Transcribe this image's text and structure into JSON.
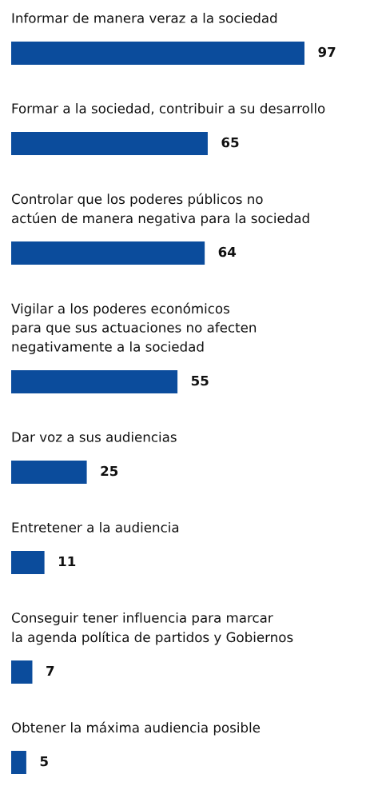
{
  "chart_data": {
    "type": "bar",
    "orientation": "horizontal",
    "categories": [
      "Informar de manera veraz a la sociedad",
      "Formar a la sociedad, contribuir a su desarrollo",
      "Controlar que los poderes públicos no\nactúen de manera negativa para la sociedad",
      "Vigilar a los poderes económicos\npara que sus actuaciones no afecten\nnegativamente a la sociedad",
      "Dar voz a sus audiencias",
      "Entretener a la audiencia",
      "Conseguir tener influencia para marcar\nla agenda política de partidos y Gobiernos",
      "Obtener la máxima audiencia posible"
    ],
    "values": [
      97,
      65,
      64,
      55,
      25,
      11,
      7,
      5
    ],
    "color": "#0b4c9c",
    "data_labels": true
  }
}
